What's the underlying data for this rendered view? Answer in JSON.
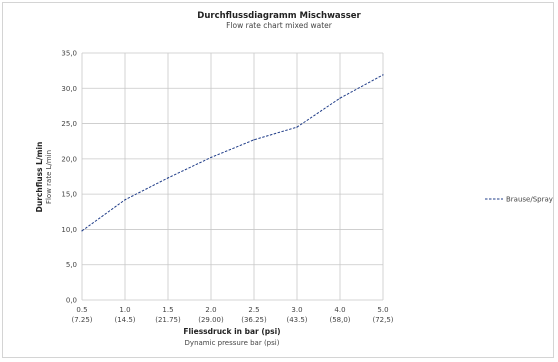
{
  "chart_data": {
    "type": "line",
    "title": "Durchflussdiagramm Mischwasser",
    "subtitle": "Flow rate chart mixed water",
    "xlabel": "Fliessdruck in bar (psi)",
    "xlabel_sub": "Dynamic pressure bar (psi)",
    "ylabel": "Durchfluss L/min",
    "ylabel_sub": "Flow rate L/min",
    "categories": [
      "0.5",
      "1.0",
      "1.5",
      "2.0",
      "2.5",
      "3.0",
      "4.0",
      "5.0"
    ],
    "categories_sub": [
      "(7.25)",
      "(14.5)",
      "(21.75)",
      "(29.00)",
      "(36.25)",
      "(43.5)",
      "(58,0)",
      "(72,5)"
    ],
    "yticks": [
      "0,0",
      "5,0",
      "10,0",
      "15,0",
      "20,0",
      "25,0",
      "30,0",
      "35,0"
    ],
    "ylim": [
      0,
      35
    ],
    "grid": true,
    "legend_position": "right",
    "series": [
      {
        "name": "Brause/Spray",
        "color": "#1f3c88",
        "values": [
          9.8,
          14.2,
          17.3,
          20.2,
          22.7,
          24.5,
          28.6,
          31.9
        ]
      }
    ]
  }
}
